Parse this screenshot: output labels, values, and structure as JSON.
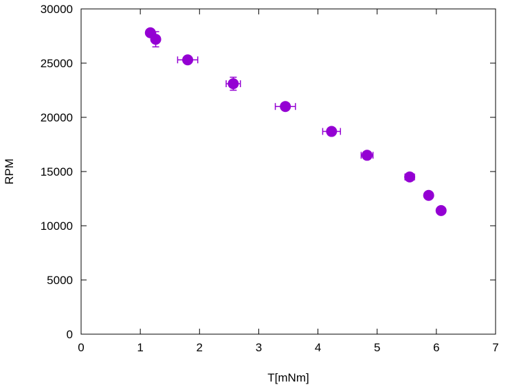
{
  "chart_data": {
    "type": "scatter",
    "title": "",
    "xlabel": "T[mNm]",
    "ylabel": "RPM",
    "xlim": [
      0,
      7
    ],
    "ylim": [
      0,
      30000
    ],
    "xticks": [
      0,
      1,
      2,
      3,
      4,
      5,
      6,
      7
    ],
    "yticks": [
      0,
      5000,
      10000,
      15000,
      20000,
      25000,
      30000
    ],
    "grid": false,
    "legend": "none",
    "marker_color": "#9400d3",
    "series": [
      {
        "points": [
          {
            "x": 1.17,
            "y": 27800,
            "xerr": 0.0,
            "yerr": 0
          },
          {
            "x": 1.26,
            "y": 27200,
            "xerr": 0.05,
            "yerr": 700
          },
          {
            "x": 1.8,
            "y": 25300,
            "xerr": 0.17,
            "yerr": 0
          },
          {
            "x": 2.57,
            "y": 23100,
            "xerr": 0.12,
            "yerr": 600
          },
          {
            "x": 3.45,
            "y": 21000,
            "xerr": 0.17,
            "yerr": 0
          },
          {
            "x": 4.23,
            "y": 18700,
            "xerr": 0.15,
            "yerr": 0
          },
          {
            "x": 4.83,
            "y": 16500,
            "xerr": 0.1,
            "yerr": 300
          },
          {
            "x": 5.55,
            "y": 14500,
            "xerr": 0.08,
            "yerr": 0
          },
          {
            "x": 5.87,
            "y": 12800,
            "xerr": 0.0,
            "yerr": 0
          },
          {
            "x": 6.08,
            "y": 11400,
            "xerr": 0.0,
            "yerr": 0
          }
        ]
      }
    ]
  }
}
